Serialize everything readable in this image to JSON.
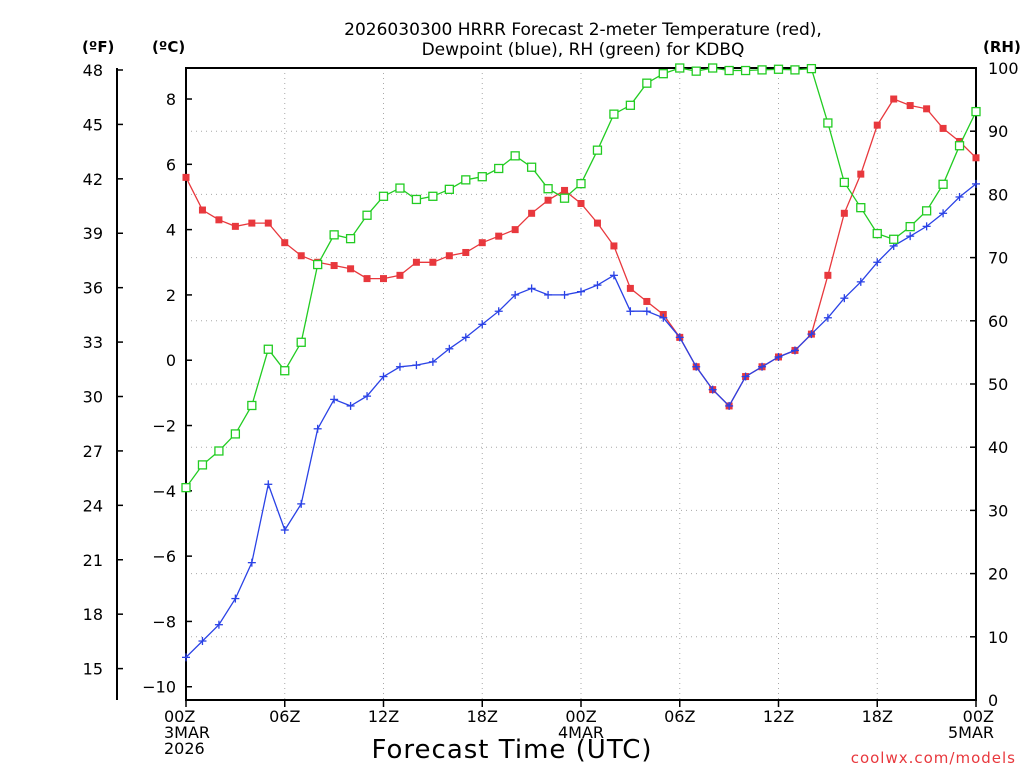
{
  "title_line1": "2026030300 HRRR Forecast 2-meter Temperature (red),",
  "title_line2": "Dewpoint (blue), RH (green) for KDBQ",
  "units": {
    "fahrenheit": "(ºF)",
    "celsius": "(ºC)",
    "rh": "(RH)"
  },
  "xlabel": "Forecast Time (UTC)",
  "credit": "coolwx.com/models",
  "colors": {
    "temperature": "#e8383d",
    "dewpoint": "#2a42e6",
    "rh": "#22cc22"
  },
  "chart_data": {
    "type": "line",
    "x_unit": "forecast hour",
    "xlim": [
      0,
      48
    ],
    "ylim_celsius": [
      -10,
      9
    ],
    "ylim_rh": [
      0,
      100
    ],
    "x_ticks": [
      {
        "x": 0,
        "lines": [
          "00Z",
          "3MAR",
          "2026"
        ]
      },
      {
        "x": 6,
        "lines": [
          "06Z"
        ]
      },
      {
        "x": 12,
        "lines": [
          "12Z"
        ]
      },
      {
        "x": 18,
        "lines": [
          "18Z"
        ]
      },
      {
        "x": 24,
        "lines": [
          "00Z",
          "4MAR"
        ]
      },
      {
        "x": 30,
        "lines": [
          "06Z"
        ]
      },
      {
        "x": 36,
        "lines": [
          "12Z"
        ]
      },
      {
        "x": 42,
        "lines": [
          "18Z"
        ]
      },
      {
        "x": 48,
        "lines": [
          "00Z",
          "5MAR"
        ]
      }
    ],
    "y_ticks_fahrenheit": [
      15,
      18,
      21,
      24,
      27,
      30,
      33,
      36,
      39,
      42,
      45,
      48
    ],
    "y_ticks_celsius": [
      -10,
      -8,
      -6,
      -4,
      -2,
      0,
      2,
      4,
      6,
      8
    ],
    "y_ticks_rh": [
      0,
      10,
      20,
      30,
      40,
      50,
      60,
      70,
      80,
      90,
      100
    ],
    "series": [
      {
        "name": "Temperature",
        "axis": "celsius",
        "marker": "filled-square",
        "values": [
          5.6,
          4.6,
          4.3,
          4.1,
          4.2,
          4.2,
          3.6,
          3.2,
          3.0,
          2.9,
          2.8,
          2.5,
          2.5,
          2.6,
          3.0,
          3.0,
          3.2,
          3.3,
          3.6,
          3.8,
          4.0,
          4.5,
          4.9,
          5.2,
          4.8,
          4.2,
          3.5,
          2.2,
          1.8,
          1.4,
          0.7,
          -0.2,
          -0.9,
          -1.4,
          -0.5,
          -0.2,
          0.1,
          0.3,
          0.8,
          2.6,
          4.5,
          5.7,
          7.2,
          8.0,
          7.8,
          7.7,
          7.1,
          6.7,
          6.2
        ]
      },
      {
        "name": "Dewpoint",
        "axis": "celsius",
        "marker": "plus",
        "values": [
          -9.1,
          -8.6,
          -8.1,
          -7.3,
          -6.2,
          -3.8,
          -5.2,
          -4.4,
          -2.1,
          -1.2,
          -1.4,
          -1.1,
          -0.5,
          -0.2,
          -0.15,
          -0.05,
          0.35,
          0.7,
          1.1,
          1.5,
          2.0,
          2.2,
          2.0,
          2.0,
          2.1,
          2.3,
          2.6,
          1.5,
          1.5,
          1.3,
          0.7,
          -0.2,
          -0.9,
          -1.4,
          -0.5,
          -0.2,
          0.1,
          0.3,
          0.8,
          1.3,
          1.9,
          2.4,
          3.0,
          3.5,
          3.8,
          4.1,
          4.5,
          5.0,
          5.4
        ]
      },
      {
        "name": "RH",
        "axis": "rh",
        "marker": "open-square",
        "values": [
          33.6,
          37.2,
          39.4,
          42.1,
          46.6,
          55.5,
          52.1,
          56.6,
          68.9,
          73.6,
          73.0,
          76.7,
          79.7,
          81.0,
          79.2,
          79.7,
          80.8,
          82.3,
          82.8,
          84.1,
          86.1,
          84.3,
          80.9,
          79.4,
          81.7,
          87.0,
          92.7,
          94.1,
          97.6,
          99.1,
          100.0,
          99.5,
          100.0,
          99.6,
          99.6,
          99.7,
          99.8,
          99.7,
          99.9,
          91.3,
          81.9,
          77.9,
          73.8,
          72.9,
          74.9,
          77.4,
          81.6,
          87.7,
          93.1
        ]
      }
    ]
  }
}
